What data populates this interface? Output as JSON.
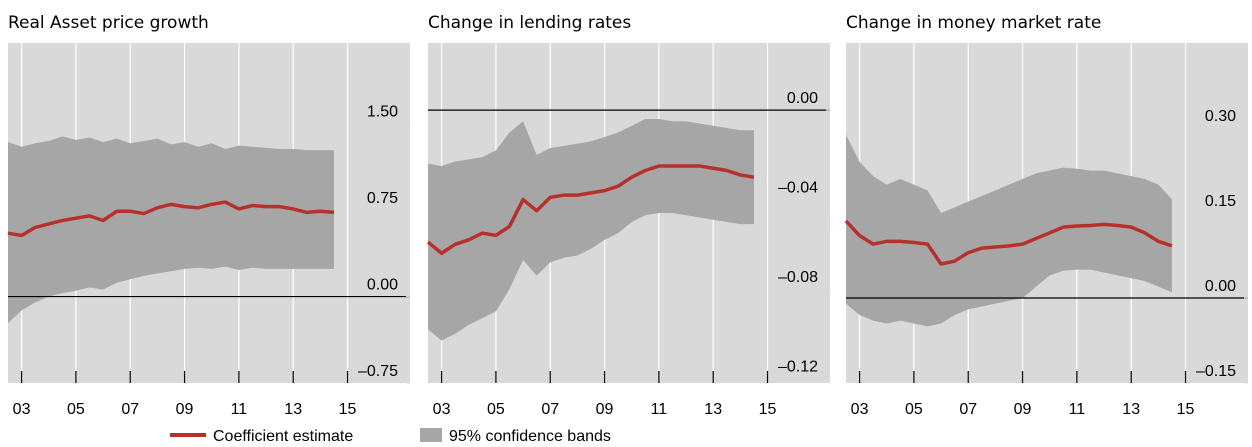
{
  "chart_data": [
    {
      "type": "line",
      "title": "Real Asset price growth",
      "x": [
        3,
        3.5,
        4,
        4.5,
        5,
        5.5,
        6,
        6.5,
        7,
        7.5,
        8,
        8.5,
        9,
        9.5,
        10,
        10.5,
        11,
        11.5,
        12,
        12.5,
        13,
        13.5,
        14,
        14.5,
        15
      ],
      "series": [
        {
          "name": "Coefficient estimate",
          "color": "#b7312c",
          "values": [
            0.55,
            0.53,
            0.6,
            0.63,
            0.66,
            0.68,
            0.7,
            0.66,
            0.74,
            0.74,
            0.72,
            0.77,
            0.8,
            0.78,
            0.77,
            0.8,
            0.82,
            0.76,
            0.79,
            0.78,
            0.78,
            0.76,
            0.73,
            0.74,
            0.73
          ]
        },
        {
          "name": "95% confidence bands",
          "color": "#a6a6a6",
          "upper": [
            1.34,
            1.3,
            1.33,
            1.35,
            1.39,
            1.36,
            1.38,
            1.34,
            1.37,
            1.33,
            1.35,
            1.37,
            1.32,
            1.34,
            1.3,
            1.33,
            1.28,
            1.31,
            1.3,
            1.29,
            1.28,
            1.28,
            1.27,
            1.27,
            1.27
          ],
          "lower": [
            -0.23,
            -0.12,
            -0.05,
            0.0,
            0.03,
            0.05,
            0.08,
            0.06,
            0.12,
            0.15,
            0.18,
            0.2,
            0.22,
            0.24,
            0.25,
            0.24,
            0.26,
            0.23,
            0.25,
            0.24,
            0.24,
            0.24,
            0.24,
            0.24,
            0.24
          ]
        }
      ],
      "xlim": [
        3,
        17.8
      ],
      "xticks": [
        {
          "value": 3.5,
          "label": "03"
        },
        {
          "value": 5.5,
          "label": "05"
        },
        {
          "value": 7.5,
          "label": "07"
        },
        {
          "value": 9.5,
          "label": "09"
        },
        {
          "value": 11.5,
          "label": "11"
        },
        {
          "value": 13.5,
          "label": "13"
        },
        {
          "value": 15.5,
          "label": "15"
        }
      ],
      "ylim": [
        -0.75,
        2.2
      ],
      "yticks": [
        {
          "value": -0.75,
          "label": "–0.75"
        },
        {
          "value": 0,
          "label": "0.00"
        },
        {
          "value": 0.75,
          "label": "0.75"
        },
        {
          "value": 1.5,
          "label": "1.50"
        }
      ]
    },
    {
      "type": "line",
      "title": "Change in lending rates",
      "x": [
        3,
        3.5,
        4,
        4.5,
        5,
        5.5,
        6,
        6.5,
        7,
        7.5,
        8,
        8.5,
        9,
        9.5,
        10,
        10.5,
        11,
        11.5,
        12,
        12.5,
        13,
        13.5,
        14,
        14.5,
        15
      ],
      "series": [
        {
          "color": "#b7312c",
          "values": [
            -0.059,
            -0.064,
            -0.06,
            -0.058,
            -0.055,
            -0.056,
            -0.052,
            -0.04,
            -0.045,
            -0.039,
            -0.038,
            -0.038,
            -0.037,
            -0.036,
            -0.034,
            -0.03,
            -0.027,
            -0.025,
            -0.025,
            -0.025,
            -0.025,
            -0.026,
            -0.027,
            -0.029,
            -0.03
          ]
        },
        {
          "color": "#a6a6a6",
          "upper": [
            -0.024,
            -0.025,
            -0.023,
            -0.022,
            -0.021,
            -0.018,
            -0.01,
            -0.005,
            -0.02,
            -0.017,
            -0.016,
            -0.015,
            -0.014,
            -0.012,
            -0.01,
            -0.007,
            -0.004,
            -0.004,
            -0.005,
            -0.005,
            -0.006,
            -0.007,
            -0.008,
            -0.009,
            -0.009
          ],
          "lower": [
            -0.098,
            -0.103,
            -0.1,
            -0.096,
            -0.093,
            -0.09,
            -0.08,
            -0.067,
            -0.074,
            -0.068,
            -0.066,
            -0.065,
            -0.062,
            -0.058,
            -0.055,
            -0.05,
            -0.047,
            -0.046,
            -0.046,
            -0.047,
            -0.048,
            -0.049,
            -0.05,
            -0.051,
            -0.051
          ]
        }
      ],
      "xlim": [
        3,
        17.8
      ],
      "xticks": [
        {
          "value": 3.5,
          "label": "03"
        },
        {
          "value": 5.5,
          "label": "05"
        },
        {
          "value": 7.5,
          "label": "07"
        },
        {
          "value": 9.5,
          "label": "09"
        },
        {
          "value": 11.5,
          "label": "11"
        },
        {
          "value": 13.5,
          "label": "13"
        },
        {
          "value": 15.5,
          "label": "15"
        }
      ],
      "ylim": [
        -0.122,
        0.03
      ],
      "yticks": [
        {
          "value": -0.12,
          "label": "–0.12"
        },
        {
          "value": -0.08,
          "label": "–0.08"
        },
        {
          "value": -0.04,
          "label": "–0.04"
        },
        {
          "value": 0,
          "label": "0.00"
        }
      ]
    },
    {
      "type": "line",
      "title": "Change in money market rate",
      "x": [
        3,
        3.5,
        4,
        4.5,
        5,
        5.5,
        6,
        6.5,
        7,
        7.5,
        8,
        8.5,
        9,
        9.5,
        10,
        10.5,
        11,
        11.5,
        12,
        12.5,
        13,
        13.5,
        14,
        14.5,
        15
      ],
      "series": [
        {
          "color": "#b7312c",
          "values": [
            0.136,
            0.11,
            0.095,
            0.1,
            0.1,
            0.098,
            0.095,
            0.06,
            0.065,
            0.08,
            0.088,
            0.09,
            0.092,
            0.095,
            0.105,
            0.115,
            0.125,
            0.127,
            0.128,
            0.13,
            0.128,
            0.125,
            0.115,
            0.1,
            0.092
          ]
        },
        {
          "color": "#a6a6a6",
          "upper": [
            0.288,
            0.24,
            0.215,
            0.2,
            0.21,
            0.2,
            0.19,
            0.15,
            0.16,
            0.17,
            0.18,
            0.19,
            0.2,
            0.21,
            0.22,
            0.225,
            0.23,
            0.228,
            0.225,
            0.225,
            0.22,
            0.215,
            0.21,
            0.2,
            0.174
          ],
          "lower": [
            -0.01,
            -0.03,
            -0.04,
            -0.045,
            -0.04,
            -0.045,
            -0.05,
            -0.045,
            -0.03,
            -0.02,
            -0.015,
            -0.01,
            -0.005,
            0.0,
            0.02,
            0.04,
            0.048,
            0.05,
            0.05,
            0.045,
            0.04,
            0.035,
            0.03,
            0.02,
            0.01
          ]
        }
      ],
      "xlim": [
        3,
        17.8
      ],
      "xticks": [
        {
          "value": 3.5,
          "label": "03"
        },
        {
          "value": 5.5,
          "label": "05"
        },
        {
          "value": 7.5,
          "label": "07"
        },
        {
          "value": 9.5,
          "label": "09"
        },
        {
          "value": 11.5,
          "label": "11"
        },
        {
          "value": 13.5,
          "label": "13"
        },
        {
          "value": 15.5,
          "label": "15"
        }
      ],
      "ylim": [
        -0.15,
        0.45
      ],
      "yticks": [
        {
          "value": -0.15,
          "label": "–0.15"
        },
        {
          "value": 0,
          "label": "0.00"
        },
        {
          "value": 0.15,
          "label": "0.15"
        },
        {
          "value": 0.3,
          "label": "0.30"
        }
      ]
    }
  ]
}
